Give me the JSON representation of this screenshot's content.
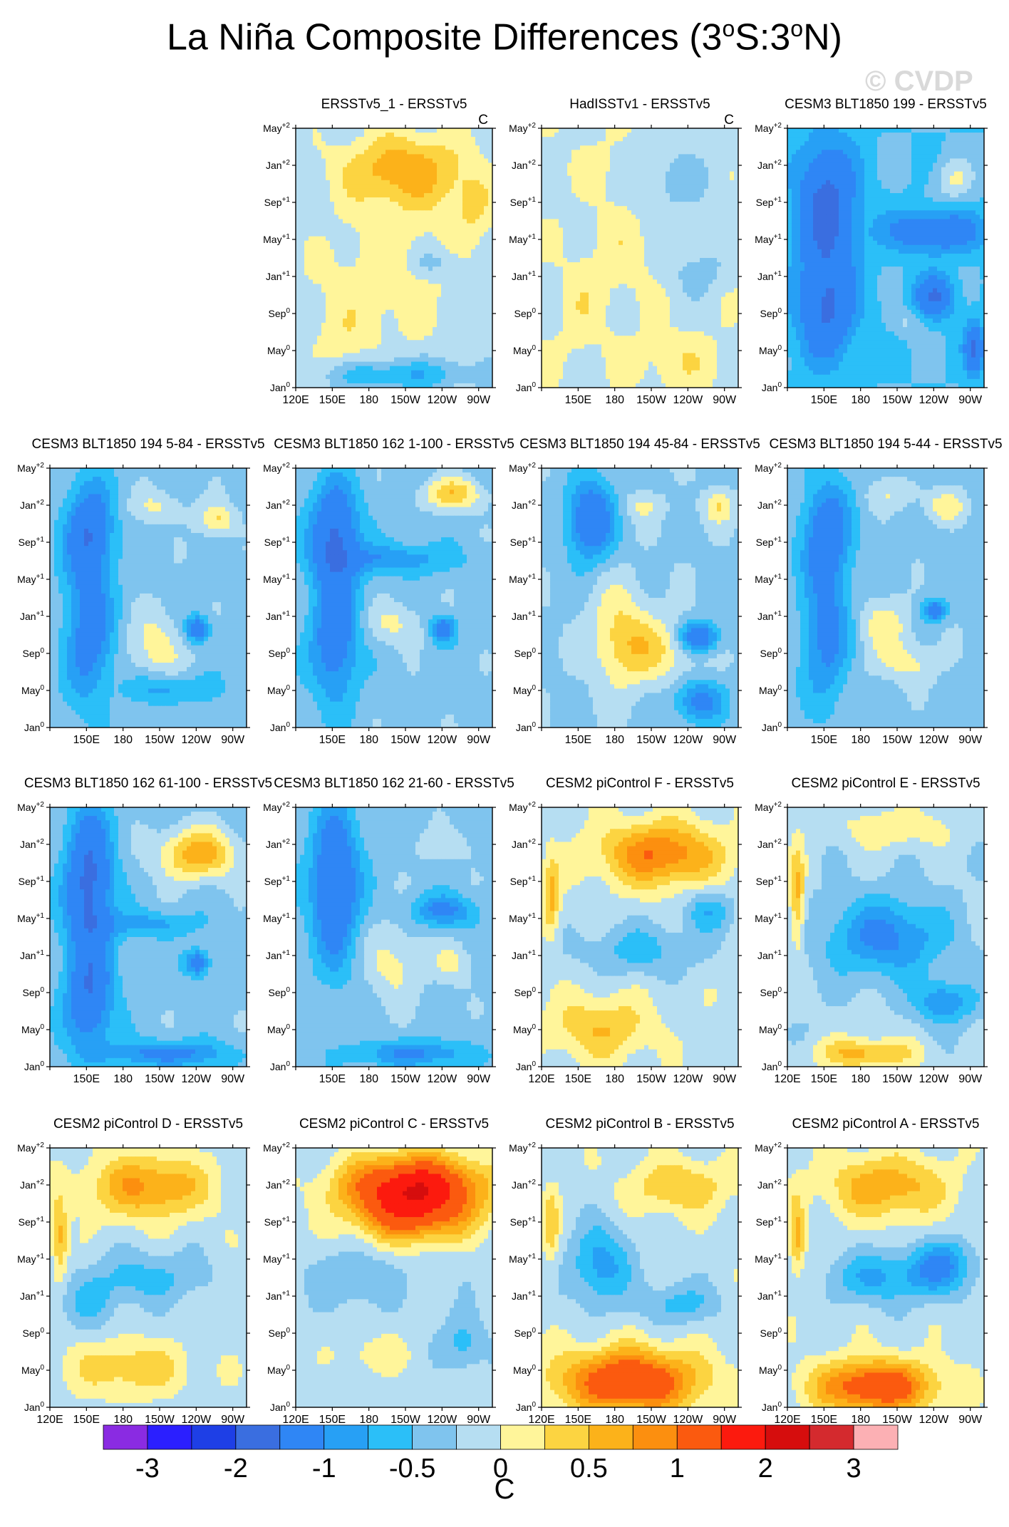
{
  "title": {
    "main": "La Niña Composite Differences (3",
    "deg1": "o",
    "mid": "S:3",
    "deg2": "o",
    "end": "N)"
  },
  "watermark": "© CVDP",
  "colors": [
    "#8a2be2",
    "#2b1fff",
    "#1e3fe6",
    "#3a6ee0",
    "#2f86f5",
    "#27a0f5",
    "#2bbff8",
    "#7fc4ee",
    "#b6def2",
    "#fff59a",
    "#fcd441",
    "#fcb21a",
    "#fc8f0f",
    "#fb5a0f",
    "#fc1a0e",
    "#d60d0d",
    "#d42a2e",
    "#fcb0b4"
  ],
  "chart_data": {
    "type": "heatmap",
    "x_ticks": [
      "120E",
      "150E",
      "180",
      "150W",
      "120W",
      "90W"
    ],
    "y_ticks": [
      {
        "base": "Jan",
        "sup": "0"
      },
      {
        "base": "May",
        "sup": "0"
      },
      {
        "base": "Sep",
        "sup": "0"
      },
      {
        "base": "Jan",
        "sup": "+1"
      },
      {
        "base": "May",
        "sup": "+1"
      },
      {
        "base": "Sep",
        "sup": "+1"
      },
      {
        "base": "Jan",
        "sup": "+2"
      },
      {
        "base": "May",
        "sup": "+2"
      }
    ],
    "units": "C",
    "colorbar": {
      "labels": [
        "-3",
        "-2",
        "-1",
        "-0.5",
        "0",
        "0.5",
        "1",
        "2",
        "3"
      ],
      "units": "C"
    },
    "panels": [
      {
        "title": "ERSSTv5_1 - ERSSTv5",
        "units": "C",
        "row": 0,
        "col": 1,
        "show_120E": true,
        "blobs": [
          [
            0.55,
            0.15,
            0.3,
            0.12,
            0.55
          ],
          [
            0.55,
            0.22,
            0.35,
            0.2,
            0.35
          ],
          [
            0.9,
            0.3,
            0.1,
            0.12,
            0.4
          ],
          [
            0.45,
            0.55,
            0.4,
            0.15,
            0.25
          ],
          [
            0.2,
            0.85,
            0.15,
            0.15,
            0.2
          ],
          [
            0.5,
            0.95,
            0.4,
            0.06,
            -0.6
          ],
          [
            0.7,
            0.52,
            0.15,
            0.05,
            -0.3
          ],
          [
            0.4,
            0.75,
            0.3,
            0.15,
            0.2
          ]
        ],
        "base": -0.15
      },
      {
        "title": "HadISSTv1 - ERSSTv5",
        "units": "C",
        "row": 0,
        "col": 2,
        "show_120E": false,
        "blobs": [
          [
            0.4,
            0.4,
            0.15,
            0.3,
            0.2
          ],
          [
            0.2,
            0.7,
            0.1,
            0.2,
            0.2
          ],
          [
            0.7,
            0.9,
            0.2,
            0.1,
            0.25
          ],
          [
            0.6,
            0.2,
            0.3,
            0.15,
            -0.3
          ],
          [
            0.8,
            0.55,
            0.15,
            0.1,
            -0.3
          ],
          [
            0.3,
            0.15,
            0.15,
            0.1,
            0.15
          ]
        ],
        "base": -0.05
      },
      {
        "title": "CESM3 BLT1850 199 - ERSSTv5",
        "units": "",
        "row": 0,
        "col": 3,
        "show_120E": false,
        "blobs": [
          [
            0.2,
            0.3,
            0.15,
            0.25,
            -1.2
          ],
          [
            0.2,
            0.7,
            0.15,
            0.2,
            -1.0
          ],
          [
            0.75,
            0.4,
            0.25,
            0.08,
            -0.9
          ],
          [
            0.75,
            0.65,
            0.1,
            0.08,
            -1.0
          ],
          [
            0.85,
            0.2,
            0.1,
            0.08,
            0.5
          ],
          [
            0.6,
            0.75,
            0.08,
            0.05,
            0.3
          ],
          [
            0.95,
            0.85,
            0.05,
            0.1,
            -1.0
          ]
        ],
        "base": -0.5
      },
      {
        "title": "CESM3 BLT1850 194 5-84 - ERSSTv5",
        "units": "",
        "row": 1,
        "col": 0,
        "show_120E": false,
        "blobs": [
          [
            0.2,
            0.25,
            0.12,
            0.2,
            -1.1
          ],
          [
            0.2,
            0.65,
            0.12,
            0.25,
            -0.9
          ],
          [
            0.55,
            0.7,
            0.15,
            0.15,
            0.45
          ],
          [
            0.55,
            0.15,
            0.15,
            0.06,
            0.35
          ],
          [
            0.85,
            0.2,
            0.1,
            0.06,
            0.6
          ],
          [
            0.75,
            0.62,
            0.06,
            0.05,
            -1.0
          ],
          [
            0.6,
            0.85,
            0.2,
            0.06,
            -0.6
          ]
        ],
        "base": -0.35
      },
      {
        "title": "CESM3 BLT1850 162 1-100 - ERSSTv5",
        "units": "",
        "row": 1,
        "col": 1,
        "show_120E": false,
        "blobs": [
          [
            0.2,
            0.25,
            0.12,
            0.2,
            -1.2
          ],
          [
            0.2,
            0.65,
            0.12,
            0.25,
            -1.0
          ],
          [
            0.5,
            0.6,
            0.15,
            0.08,
            0.4
          ],
          [
            0.8,
            0.1,
            0.15,
            0.06,
            0.8
          ],
          [
            0.75,
            0.62,
            0.06,
            0.05,
            -1.1
          ],
          [
            0.5,
            0.35,
            0.3,
            0.06,
            -0.6
          ]
        ],
        "base": -0.35
      },
      {
        "title": "CESM3 BLT1850 194 45-84 - ERSSTv5",
        "units": "",
        "row": 1,
        "col": 2,
        "show_120E": false,
        "blobs": [
          [
            0.25,
            0.2,
            0.12,
            0.15,
            -1.2
          ],
          [
            0.4,
            0.65,
            0.15,
            0.2,
            0.6
          ],
          [
            0.6,
            0.7,
            0.2,
            0.12,
            0.5
          ],
          [
            0.8,
            0.65,
            0.1,
            0.06,
            -1.2
          ],
          [
            0.8,
            0.9,
            0.12,
            0.08,
            -0.9
          ],
          [
            0.9,
            0.15,
            0.08,
            0.06,
            0.5
          ],
          [
            0.5,
            0.15,
            0.12,
            0.05,
            0.3
          ]
        ],
        "base": -0.3
      },
      {
        "title": "CESM3 BLT1850 194 5-44 - ERSSTv5",
        "units": "",
        "row": 1,
        "col": 3,
        "show_120E": false,
        "blobs": [
          [
            0.2,
            0.25,
            0.12,
            0.2,
            -1.0
          ],
          [
            0.2,
            0.65,
            0.12,
            0.25,
            -0.8
          ],
          [
            0.5,
            0.6,
            0.15,
            0.1,
            0.45
          ],
          [
            0.6,
            0.75,
            0.2,
            0.08,
            0.4
          ],
          [
            0.55,
            0.1,
            0.15,
            0.06,
            0.3
          ],
          [
            0.8,
            0.15,
            0.1,
            0.06,
            0.5
          ],
          [
            0.75,
            0.55,
            0.06,
            0.04,
            -1.0
          ]
        ],
        "base": -0.35
      },
      {
        "title": "CESM3 BLT1850 162 61-100 - ERSSTv5",
        "units": "",
        "row": 2,
        "col": 0,
        "show_120E": false,
        "blobs": [
          [
            0.2,
            0.3,
            0.12,
            0.3,
            -1.3
          ],
          [
            0.2,
            0.75,
            0.12,
            0.2,
            -1.0
          ],
          [
            0.75,
            0.18,
            0.2,
            0.1,
            1.0
          ],
          [
            0.75,
            0.6,
            0.06,
            0.05,
            -1.0
          ],
          [
            0.6,
            0.95,
            0.3,
            0.05,
            -0.8
          ],
          [
            0.5,
            0.45,
            0.25,
            0.05,
            -0.5
          ]
        ],
        "base": -0.35
      },
      {
        "title": "CESM3 BLT1850 162 21-60 - ERSSTv5",
        "units": "",
        "row": 2,
        "col": 1,
        "show_120E": false,
        "blobs": [
          [
            0.2,
            0.3,
            0.12,
            0.3,
            -1.2
          ],
          [
            0.5,
            0.6,
            0.15,
            0.15,
            0.45
          ],
          [
            0.8,
            0.6,
            0.1,
            0.08,
            0.4
          ],
          [
            0.75,
            0.4,
            0.15,
            0.06,
            -0.8
          ],
          [
            0.6,
            0.95,
            0.3,
            0.05,
            -0.7
          ],
          [
            0.75,
            0.15,
            0.15,
            0.06,
            0.3
          ]
        ],
        "base": -0.35
      },
      {
        "title": "CESM2 piControl F - ERSSTv5",
        "units": "",
        "row": 2,
        "col": 2,
        "show_120E": true,
        "blobs": [
          [
            0.6,
            0.18,
            0.3,
            0.12,
            1.1
          ],
          [
            0.3,
            0.85,
            0.25,
            0.12,
            0.6
          ],
          [
            0.05,
            0.35,
            0.04,
            0.15,
            0.7
          ],
          [
            0.5,
            0.55,
            0.3,
            0.1,
            -0.5
          ],
          [
            0.85,
            0.4,
            0.12,
            0.08,
            -0.6
          ]
        ],
        "base": -0.1
      },
      {
        "title": "CESM2 piControl E - ERSSTv5",
        "units": "",
        "row": 2,
        "col": 3,
        "show_120E": true,
        "blobs": [
          [
            0.55,
            0.08,
            0.3,
            0.08,
            0.4
          ],
          [
            0.05,
            0.35,
            0.04,
            0.2,
            0.8
          ],
          [
            0.5,
            0.5,
            0.3,
            0.15,
            -0.9
          ],
          [
            0.4,
            0.95,
            0.25,
            0.06,
            0.8
          ],
          [
            0.8,
            0.75,
            0.15,
            0.08,
            -0.8
          ]
        ],
        "base": -0.2
      },
      {
        "title": "CESM2 piControl D - ERSSTv5",
        "units": "",
        "row": 3,
        "col": 0,
        "show_120E": true,
        "blobs": [
          [
            0.5,
            0.15,
            0.3,
            0.12,
            0.9
          ],
          [
            0.4,
            0.85,
            0.3,
            0.1,
            0.55
          ],
          [
            0.05,
            0.35,
            0.04,
            0.15,
            0.7
          ],
          [
            0.5,
            0.5,
            0.3,
            0.1,
            -0.5
          ],
          [
            0.2,
            0.6,
            0.15,
            0.1,
            -0.4
          ]
        ],
        "base": -0.1
      },
      {
        "title": "CESM2 piControl C - ERSSTv5",
        "units": "",
        "row": 3,
        "col": 1,
        "show_120E": true,
        "blobs": [
          [
            0.6,
            0.15,
            0.35,
            0.12,
            2.0
          ],
          [
            0.6,
            0.28,
            0.3,
            0.1,
            0.9
          ],
          [
            0.4,
            0.8,
            0.2,
            0.08,
            0.3
          ],
          [
            0.3,
            0.5,
            0.2,
            0.1,
            -0.4
          ],
          [
            0.85,
            0.75,
            0.1,
            0.1,
            -0.5
          ]
        ],
        "base": -0.15
      },
      {
        "title": "CESM2 piControl B - ERSSTv5",
        "units": "",
        "row": 3,
        "col": 2,
        "show_120E": true,
        "blobs": [
          [
            0.45,
            0.9,
            0.35,
            0.12,
            1.6
          ],
          [
            0.7,
            0.15,
            0.25,
            0.1,
            0.6
          ],
          [
            0.3,
            0.45,
            0.15,
            0.15,
            -0.8
          ],
          [
            0.7,
            0.6,
            0.2,
            0.08,
            -0.5
          ],
          [
            0.05,
            0.3,
            0.04,
            0.15,
            0.5
          ]
        ],
        "base": -0.1
      },
      {
        "title": "CESM2 piControl A - ERSSTv5",
        "units": "",
        "row": 3,
        "col": 3,
        "show_120E": true,
        "blobs": [
          [
            0.45,
            0.92,
            0.3,
            0.1,
            1.5
          ],
          [
            0.5,
            0.15,
            0.3,
            0.12,
            0.8
          ],
          [
            0.05,
            0.35,
            0.04,
            0.15,
            0.7
          ],
          [
            0.5,
            0.5,
            0.3,
            0.1,
            -0.7
          ],
          [
            0.8,
            0.45,
            0.15,
            0.1,
            -0.8
          ]
        ],
        "base": -0.1
      }
    ]
  }
}
